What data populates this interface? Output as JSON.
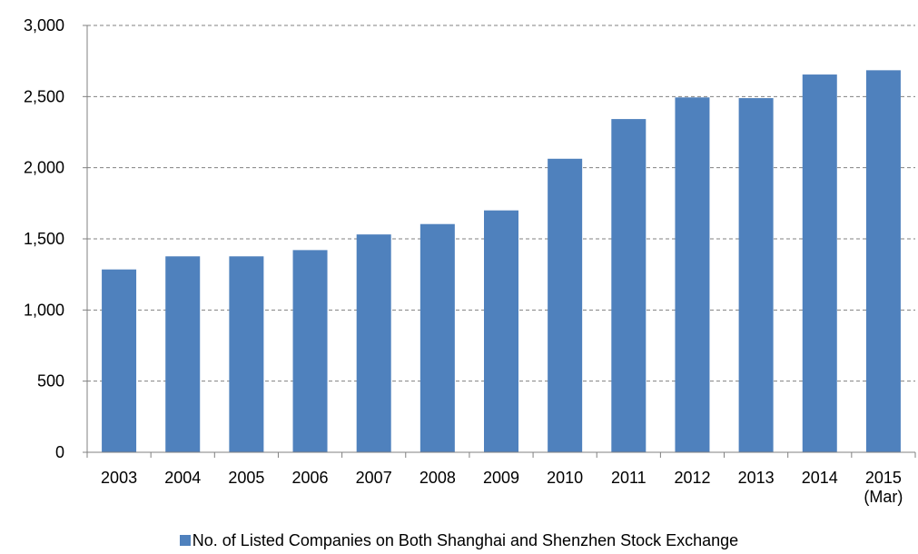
{
  "chart_data": {
    "type": "bar",
    "title": "",
    "xlabel": "",
    "ylabel": "",
    "ylim": [
      0,
      3000
    ],
    "yticks": [
      0,
      500,
      1000,
      1500,
      2000,
      2500,
      3000
    ],
    "ytick_labels": [
      "0",
      "500",
      "1,000",
      "1,500",
      "2,000",
      "2,500",
      "3,000"
    ],
    "grid": true,
    "legend_position": "bottom",
    "categories": [
      [
        "2003"
      ],
      [
        "2004"
      ],
      [
        "2005"
      ],
      [
        "2006"
      ],
      [
        "2007"
      ],
      [
        "2008"
      ],
      [
        "2009"
      ],
      [
        "2010"
      ],
      [
        "2011"
      ],
      [
        "2012"
      ],
      [
        "2013"
      ],
      [
        "2014"
      ],
      [
        "2015",
        "(Mar)"
      ]
    ],
    "series": [
      {
        "name": "No. of Listed Companies on Both Shanghai and Shenzhen Stock Exchange",
        "color": "#4F81BD",
        "values": [
          1285,
          1377,
          1377,
          1421,
          1531,
          1604,
          1700,
          2063,
          2342,
          2494,
          2489,
          2655,
          2685
        ]
      }
    ]
  }
}
